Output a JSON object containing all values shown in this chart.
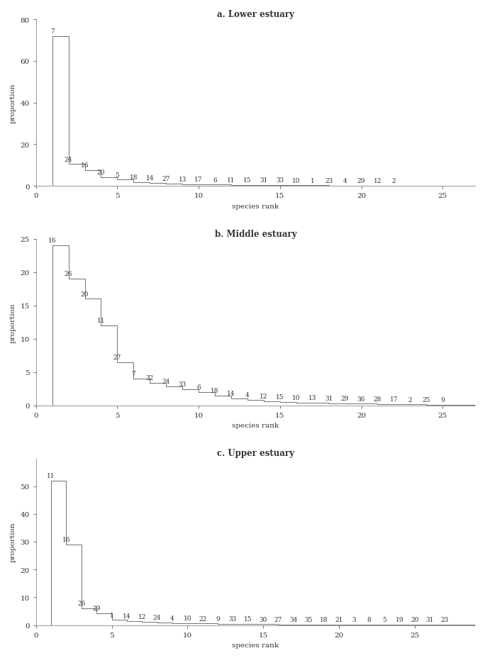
{
  "panels": [
    {
      "title": "a. Lower estuary",
      "labels": [
        7,
        24,
        16,
        20,
        5,
        18,
        14,
        27,
        13,
        17,
        6,
        11,
        15,
        31,
        33,
        10,
        1,
        23,
        4,
        29,
        12,
        2
      ],
      "values": [
        72.0,
        10.5,
        7.5,
        4.2,
        3.0,
        1.8,
        1.4,
        1.1,
        0.85,
        0.72,
        0.6,
        0.52,
        0.44,
        0.38,
        0.33,
        0.28,
        0.24,
        0.2,
        0.17,
        0.14,
        0.11,
        0.09
      ],
      "ylim": [
        0,
        80
      ],
      "yticks": [
        0,
        20,
        40,
        60,
        80
      ],
      "xlim": [
        0,
        27
      ],
      "xticks": [
        0,
        5,
        10,
        15,
        20,
        25
      ]
    },
    {
      "title": "b. Middle estuary",
      "labels": [
        16,
        26,
        20,
        11,
        27,
        7,
        32,
        24,
        33,
        6,
        18,
        14,
        4,
        12,
        15,
        10,
        13,
        31,
        29,
        36,
        28,
        17,
        2,
        25,
        9
      ],
      "values": [
        24.0,
        19.0,
        16.0,
        12.0,
        6.5,
        4.0,
        3.4,
        2.9,
        2.4,
        2.0,
        1.5,
        1.1,
        0.85,
        0.65,
        0.55,
        0.46,
        0.4,
        0.35,
        0.3,
        0.26,
        0.22,
        0.19,
        0.16,
        0.13,
        0.11
      ],
      "ylim": [
        0,
        25
      ],
      "yticks": [
        0,
        5,
        10,
        15,
        20,
        25
      ],
      "xlim": [
        0,
        27
      ],
      "xticks": [
        0,
        5,
        10,
        15,
        20,
        25
      ]
    },
    {
      "title": "c. Upper estuary",
      "labels": [
        11,
        16,
        26,
        29,
        1,
        14,
        12,
        24,
        4,
        10,
        22,
        9,
        33,
        15,
        30,
        27,
        34,
        35,
        18,
        21,
        3,
        8,
        5,
        19,
        20,
        31,
        23
      ],
      "values": [
        52.0,
        29.0,
        6.0,
        4.2,
        1.8,
        1.4,
        1.1,
        0.9,
        0.75,
        0.62,
        0.52,
        0.45,
        0.38,
        0.32,
        0.28,
        0.24,
        0.21,
        0.19,
        0.17,
        0.15,
        0.13,
        0.12,
        0.1,
        0.09,
        0.08,
        0.07,
        0.06
      ],
      "ylim": [
        0,
        60
      ],
      "yticks": [
        0,
        10,
        20,
        30,
        40,
        50
      ],
      "xlim": [
        0,
        29
      ],
      "xticks": [
        0,
        5,
        10,
        15,
        20,
        25
      ]
    }
  ],
  "xlabel": "species rank",
  "ylabel": "proportion",
  "line_color": "#777777",
  "line_width": 0.75,
  "text_color": "#333333",
  "font_family": "DejaVu Serif",
  "title_fontsize": 8.5,
  "label_fontsize": 7.5,
  "tick_fontsize": 7.5,
  "annot_fontsize": 6.5
}
